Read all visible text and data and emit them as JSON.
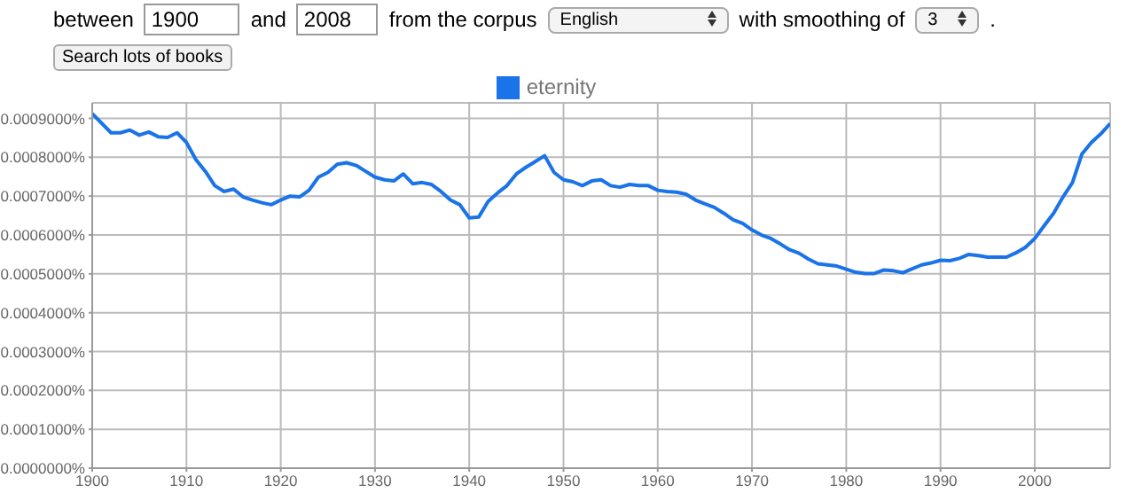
{
  "chart_data": {
    "type": "line",
    "annotations": [
      "between",
      "1900",
      "and",
      "2008",
      "from the corpus",
      "English",
      "with smoothing of",
      "3",
      ".",
      "Search lots of books"
    ],
    "x": [
      1900,
      1902,
      1903,
      1904,
      1905,
      1906,
      1907,
      1908,
      1909,
      1910,
      1911,
      1912,
      1913,
      1914,
      1915,
      1916,
      1917,
      1918,
      1919,
      1920,
      1921,
      1922,
      1923,
      1924,
      1925,
      1926,
      1927,
      1928,
      1929,
      1930,
      1931,
      1932,
      1933,
      1934,
      1935,
      1936,
      1937,
      1938,
      1939,
      1940,
      1941,
      1942,
      1943,
      1944,
      1945,
      1946,
      1947,
      1948,
      1949,
      1950,
      1951,
      1952,
      1953,
      1954,
      1955,
      1956,
      1957,
      1958,
      1959,
      1960,
      1961,
      1962,
      1963,
      1964,
      1965,
      1966,
      1967,
      1968,
      1969,
      1970,
      1971,
      1972,
      1973,
      1974,
      1975,
      1976,
      1977,
      1978,
      1979,
      1980,
      1981,
      1982,
      1983,
      1984,
      1985,
      1986,
      1987,
      1988,
      1989,
      1990,
      1991,
      1992,
      1993,
      1994,
      1995,
      1996,
      1997,
      1998,
      1999,
      2000,
      2001,
      2002,
      2003,
      2004,
      2005,
      2006,
      2007,
      2008
    ],
    "series": [
      {
        "name": "eternity",
        "color": "#1a73e8",
        "values": [
          0.000912,
          0.000863,
          0.000863,
          0.00087,
          0.000857,
          0.000865,
          0.000853,
          0.000851,
          0.000863,
          0.000838,
          0.000794,
          0.000764,
          0.000727,
          0.000712,
          0.000718,
          0.000698,
          0.00069,
          0.000683,
          0.000678,
          0.00069,
          0.0007,
          0.000698,
          0.000715,
          0.000749,
          0.000761,
          0.000782,
          0.000786,
          0.000779,
          0.000764,
          0.000749,
          0.000742,
          0.000739,
          0.000757,
          0.000732,
          0.000735,
          0.00073,
          0.000712,
          0.00069,
          0.000678,
          0.000644,
          0.000646,
          0.000686,
          0.000708,
          0.000727,
          0.000757,
          0.000774,
          0.000789,
          0.000804,
          0.000761,
          0.000742,
          0.000737,
          0.000727,
          0.000739,
          0.000742,
          0.000727,
          0.000723,
          0.00073,
          0.000727,
          0.000727,
          0.000715,
          0.000712,
          0.00071,
          0.000705,
          0.00069,
          0.00068,
          0.000671,
          0.000656,
          0.000639,
          0.00063,
          0.000613,
          0.0006,
          0.000591,
          0.000577,
          0.000562,
          0.000553,
          0.000538,
          0.000526,
          0.000523,
          0.00052,
          0.000512,
          0.000504,
          0.000501,
          0.000501,
          0.00051,
          0.000508,
          0.000503,
          0.000513,
          0.000523,
          0.000528,
          0.000535,
          0.000534,
          0.00054,
          0.00055,
          0.000547,
          0.000543,
          0.000543,
          0.000543,
          0.000554,
          0.000568,
          0.000591,
          0.000624,
          0.000656,
          0.000698,
          0.000735,
          0.000808,
          0.000838,
          0.00086,
          0.000887
        ]
      }
    ],
    "xlim": [
      1900,
      2008
    ],
    "xticks": [
      1900,
      1910,
      1920,
      1930,
      1940,
      1950,
      1960,
      1970,
      1980,
      1990,
      2000
    ],
    "ylim": [
      0,
      0.00094
    ],
    "yticks": [
      {
        "value": 0,
        "label": "0.0000000%"
      },
      {
        "value": 0.0001,
        "label": "0.0001000%"
      },
      {
        "value": 0.0002,
        "label": "0.0002000%"
      },
      {
        "value": 0.0003,
        "label": "0.0003000%"
      },
      {
        "value": 0.0004,
        "label": "0.0004000%"
      },
      {
        "value": 0.0005,
        "label": "0.0005000%"
      },
      {
        "value": 0.0006,
        "label": "0.0006000%"
      },
      {
        "value": 0.0007,
        "label": "0.0007000%"
      },
      {
        "value": 0.0008,
        "label": "0.0008000%"
      },
      {
        "value": 0.0009,
        "label": "0.0009000%"
      }
    ],
    "grid": true,
    "legend": "top",
    "marker": "none",
    "line_style": "solid"
  }
}
